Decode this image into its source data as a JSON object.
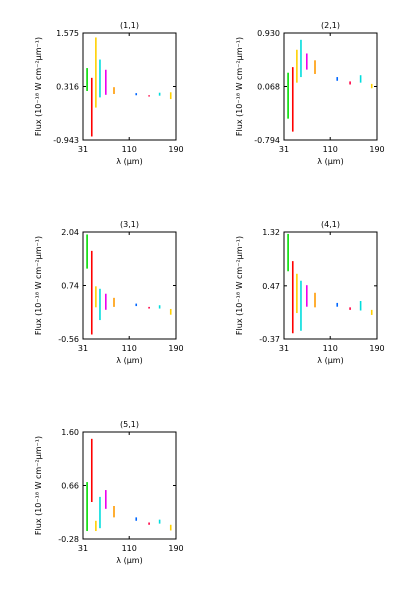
{
  "chart_data": [
    {
      "type": "scatter",
      "title": "(1,1)",
      "xlabel": "λ (μm)",
      "ylabel": "Flux (10⁻¹⁸ W cm⁻²μm⁻¹)",
      "xlim": [
        31,
        190
      ],
      "ylim": [
        -0.943,
        1.575
      ],
      "xticks": [
        31,
        110,
        190
      ],
      "yticks": [
        -0.943,
        0.316,
        1.575
      ],
      "xtick_labels": [
        "31",
        "110",
        "190"
      ],
      "ytick_labels": [
        "-0.943",
        "0.316",
        "1.575"
      ],
      "grid": false,
      "series": [
        {
          "color": "#00dd00",
          "points": [
            [
              38,
              0.21
            ],
            [
              38,
              0.75
            ]
          ]
        },
        {
          "color": "#ff0000",
          "points": [
            [
              46,
              -0.86
            ],
            [
              46,
              0.52
            ]
          ]
        },
        {
          "color": "#ffd000",
          "points": [
            [
              53,
              -0.18
            ],
            [
              53,
              1.47
            ]
          ]
        },
        {
          "color": "#00dddd",
          "points": [
            [
              60,
              0.06
            ],
            [
              60,
              0.95
            ]
          ]
        },
        {
          "color": "#ee00ee",
          "points": [
            [
              70,
              0.12
            ],
            [
              70,
              0.71
            ]
          ]
        },
        {
          "color": "#ff9900",
          "points": [
            [
              84,
              0.14
            ],
            [
              84,
              0.3
            ]
          ]
        },
        {
          "color": "#0066ff",
          "points": [
            [
              122,
              0.11
            ],
            [
              122,
              0.16
            ]
          ]
        },
        {
          "color": "#ff0044",
          "points": [
            [
              144,
              0.08
            ],
            [
              144,
              0.11
            ]
          ]
        },
        {
          "color": "#00dddd",
          "points": [
            [
              162,
              0.1
            ],
            [
              162,
              0.17
            ]
          ]
        },
        {
          "color": "#ffd000",
          "points": [
            [
              181,
              0.02
            ],
            [
              181,
              0.18
            ]
          ]
        }
      ]
    },
    {
      "type": "scatter",
      "title": "(2,1)",
      "xlabel": "λ (μm)",
      "ylabel": "Flux (10⁻¹⁸ W cm⁻²μm⁻¹)",
      "xlim": [
        31,
        190
      ],
      "ylim": [
        -0.794,
        0.93
      ],
      "xticks": [
        31,
        110,
        190
      ],
      "yticks": [
        -0.794,
        0.068,
        0.93
      ],
      "xtick_labels": [
        "31",
        "110",
        "190"
      ],
      "ytick_labels": [
        "-0.794",
        "0.068",
        "0.930"
      ],
      "grid": false,
      "series": [
        {
          "color": "#00dd00",
          "points": [
            [
              38,
              -0.45
            ],
            [
              38,
              0.29
            ]
          ]
        },
        {
          "color": "#ff0000",
          "points": [
            [
              46,
              -0.66
            ],
            [
              46,
              0.38
            ]
          ]
        },
        {
          "color": "#ffd000",
          "points": [
            [
              53,
              0.13
            ],
            [
              53,
              0.66
            ]
          ]
        },
        {
          "color": "#00dddd",
          "points": [
            [
              60,
              0.22
            ],
            [
              60,
              0.82
            ]
          ]
        },
        {
          "color": "#ee00ee",
          "points": [
            [
              70,
              0.34
            ],
            [
              70,
              0.6
            ]
          ]
        },
        {
          "color": "#ff9900",
          "points": [
            [
              84,
              0.27
            ],
            [
              84,
              0.49
            ]
          ]
        },
        {
          "color": "#0066ff",
          "points": [
            [
              122,
              0.16
            ],
            [
              122,
              0.22
            ]
          ]
        },
        {
          "color": "#ff0044",
          "points": [
            [
              144,
              0.1
            ],
            [
              144,
              0.15
            ]
          ]
        },
        {
          "color": "#00dddd",
          "points": [
            [
              162,
              0.13
            ],
            [
              162,
              0.25
            ]
          ]
        },
        {
          "color": "#ffd000",
          "points": [
            [
              181,
              0.04
            ],
            [
              181,
              0.11
            ]
          ]
        }
      ]
    },
    {
      "type": "scatter",
      "title": "(3,1)",
      "xlabel": "λ (μm)",
      "ylabel": "Flux (10⁻¹⁸ W cm⁻²μm⁻¹)",
      "xlim": [
        31,
        190
      ],
      "ylim": [
        -0.56,
        2.04
      ],
      "xticks": [
        31,
        110,
        190
      ],
      "yticks": [
        -0.56,
        0.74,
        2.04
      ],
      "xtick_labels": [
        "31",
        "110",
        "190"
      ],
      "ytick_labels": [
        "-0.56",
        "0.74",
        "2.04"
      ],
      "grid": false,
      "series": [
        {
          "color": "#00dd00",
          "points": [
            [
              38,
              1.15
            ],
            [
              38,
              1.98
            ]
          ]
        },
        {
          "color": "#ff0000",
          "points": [
            [
              46,
              -0.45
            ],
            [
              46,
              1.58
            ]
          ]
        },
        {
          "color": "#ffd000",
          "points": [
            [
              53,
              0.21
            ],
            [
              53,
              0.72
            ]
          ]
        },
        {
          "color": "#00dddd",
          "points": [
            [
              60,
              -0.1
            ],
            [
              60,
              0.66
            ]
          ]
        },
        {
          "color": "#ee00ee",
          "points": [
            [
              70,
              0.15
            ],
            [
              70,
              0.54
            ]
          ]
        },
        {
          "color": "#ff9900",
          "points": [
            [
              84,
              0.22
            ],
            [
              84,
              0.44
            ]
          ]
        },
        {
          "color": "#0066ff",
          "points": [
            [
              122,
              0.24
            ],
            [
              122,
              0.3
            ]
          ]
        },
        {
          "color": "#ff0044",
          "points": [
            [
              144,
              0.18
            ],
            [
              144,
              0.22
            ]
          ]
        },
        {
          "color": "#00dddd",
          "points": [
            [
              162,
              0.18
            ],
            [
              162,
              0.26
            ]
          ]
        },
        {
          "color": "#ffd000",
          "points": [
            [
              181,
              0.03
            ],
            [
              181,
              0.17
            ]
          ]
        }
      ]
    },
    {
      "type": "scatter",
      "title": "(4,1)",
      "xlabel": "λ (μm)",
      "ylabel": "Flux (10⁻¹⁸ W cm⁻²μm⁻¹)",
      "xlim": [
        31,
        190
      ],
      "ylim": [
        -0.37,
        1.32
      ],
      "xticks": [
        31,
        110,
        190
      ],
      "yticks": [
        -0.37,
        0.47,
        1.32
      ],
      "xtick_labels": [
        "31",
        "110",
        "190"
      ],
      "ytick_labels": [
        "-0.37",
        "0.47",
        "1.32"
      ],
      "grid": false,
      "series": [
        {
          "color": "#00dd00",
          "points": [
            [
              38,
              0.7
            ],
            [
              38,
              1.29
            ]
          ]
        },
        {
          "color": "#ff0000",
          "points": [
            [
              46,
              -0.28
            ],
            [
              46,
              0.86
            ]
          ]
        },
        {
          "color": "#ffd000",
          "points": [
            [
              53,
              0.04
            ],
            [
              53,
              0.66
            ]
          ]
        },
        {
          "color": "#00dddd",
          "points": [
            [
              60,
              -0.24
            ],
            [
              60,
              0.55
            ]
          ]
        },
        {
          "color": "#ee00ee",
          "points": [
            [
              70,
              0.14
            ],
            [
              70,
              0.48
            ]
          ]
        },
        {
          "color": "#ff9900",
          "points": [
            [
              84,
              0.13
            ],
            [
              84,
              0.36
            ]
          ]
        },
        {
          "color": "#0066ff",
          "points": [
            [
              122,
              0.14
            ],
            [
              122,
              0.2
            ]
          ]
        },
        {
          "color": "#ff0044",
          "points": [
            [
              144,
              0.09
            ],
            [
              144,
              0.13
            ]
          ]
        },
        {
          "color": "#00dddd",
          "points": [
            [
              162,
              0.08
            ],
            [
              162,
              0.23
            ]
          ]
        },
        {
          "color": "#ffd000",
          "points": [
            [
              181,
              0.01
            ],
            [
              181,
              0.09
            ]
          ]
        }
      ]
    },
    {
      "type": "scatter",
      "title": "(5,1)",
      "xlabel": "λ (μm)",
      "ylabel": "Flux (10⁻¹⁸ W cm⁻²μm⁻¹)",
      "xlim": [
        31,
        190
      ],
      "ylim": [
        -0.28,
        1.6
      ],
      "xticks": [
        31,
        110,
        190
      ],
      "yticks": [
        -0.28,
        0.66,
        1.6
      ],
      "xtick_labels": [
        "31",
        "110",
        "190"
      ],
      "ytick_labels": [
        "-0.28",
        "0.66",
        "1.60"
      ],
      "grid": false,
      "series": [
        {
          "color": "#00dd00",
          "points": [
            [
              38,
              -0.14
            ],
            [
              38,
              0.72
            ]
          ]
        },
        {
          "color": "#ff0000",
          "points": [
            [
              46,
              0.37
            ],
            [
              46,
              1.48
            ]
          ]
        },
        {
          "color": "#ffd000",
          "points": [
            [
              53,
              -0.14
            ],
            [
              53,
              0.04
            ]
          ]
        },
        {
          "color": "#00dddd",
          "points": [
            [
              60,
              -0.09
            ],
            [
              60,
              0.46
            ]
          ]
        },
        {
          "color": "#ee00ee",
          "points": [
            [
              70,
              0.25
            ],
            [
              70,
              0.58
            ]
          ]
        },
        {
          "color": "#ff9900",
          "points": [
            [
              84,
              0.1
            ],
            [
              84,
              0.3
            ]
          ]
        },
        {
          "color": "#0066ff",
          "points": [
            [
              122,
              0.04
            ],
            [
              122,
              0.1
            ]
          ]
        },
        {
          "color": "#ff0044",
          "points": [
            [
              144,
              -0.03
            ],
            [
              144,
              0.01
            ]
          ]
        },
        {
          "color": "#00dddd",
          "points": [
            [
              162,
              -0.01
            ],
            [
              162,
              0.06
            ]
          ]
        },
        {
          "color": "#ffd000",
          "points": [
            [
              181,
              -0.13
            ],
            [
              181,
              -0.03
            ]
          ]
        }
      ]
    }
  ]
}
